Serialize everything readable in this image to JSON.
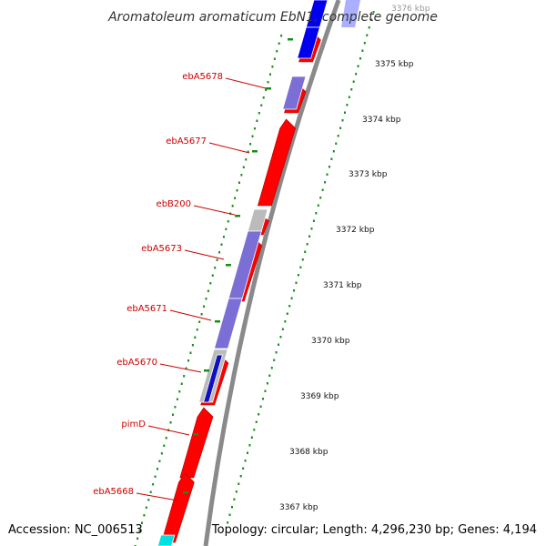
{
  "title": "Aromatoleum aromaticum EbN1, complete genome",
  "accession": "Accession: NC_006513",
  "topology_info": "Topology: circular; Length: 4,296,230 bp; Genes: 4,194",
  "colors": {
    "forward_gene": "#ff0000",
    "reverse_gene": "#7b6fd6",
    "reverse_gene_dark": "#1010c0",
    "pseudogene": "#bbbbbb",
    "other_feature": "#00e0e0",
    "backbone": "#888888",
    "tick": "#1a8c1a",
    "label": "#cc0000"
  },
  "gene_labels": [
    "ebA5678",
    "ebA5677",
    "ebB200",
    "ebA5673",
    "ebA5671",
    "ebA5670",
    "pimD",
    "ebA5668"
  ],
  "kbp_ticks": [
    "3376 kbp",
    "3375 kbp",
    "3374 kbp",
    "3373 kbp",
    "3372 kbp",
    "3371 kbp",
    "3370 kbp",
    "3369 kbp",
    "3368 kbp",
    "3367 kbp"
  ]
}
